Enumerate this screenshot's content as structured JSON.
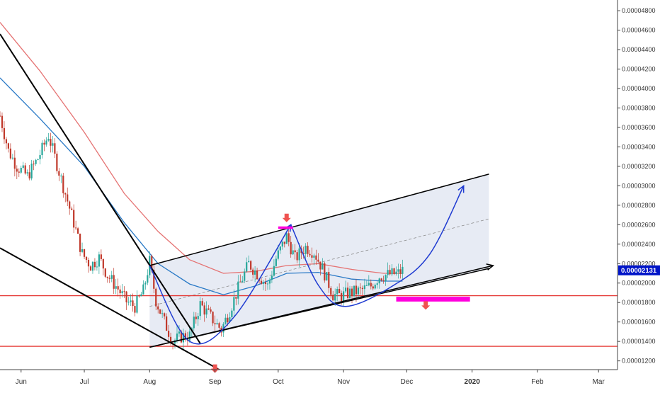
{
  "chart_data": {
    "type": "candlestick",
    "y_axis": {
      "position": "right",
      "ylim": [
        1.11e-05,
        4.91e-05
      ],
      "ticks": [
        "0.00001200",
        "0.00001400",
        "0.00001600",
        "0.00001800",
        "0.00002000",
        "0.00002200",
        "0.00002400",
        "0.00002600",
        "0.00002800",
        "0.00003000",
        "0.00003200",
        "0.00003400",
        "0.00003600",
        "0.00003800",
        "0.00004000",
        "0.00004200",
        "0.00004400",
        "0.00004600",
        "0.00004800"
      ],
      "current_price_label": "0.00002131",
      "current_price": 2.131e-05,
      "current_price_color": "#0015c8"
    },
    "x_axis": {
      "position": "bottom",
      "date_range": [
        "2019-05-22",
        "2020-03-10"
      ],
      "ticks": [
        {
          "label": "Jun",
          "date": "2019-06-01"
        },
        {
          "label": "Jul",
          "date": "2019-07-01"
        },
        {
          "label": "Aug",
          "date": "2019-08-01"
        },
        {
          "label": "Sep",
          "date": "2019-09-01"
        },
        {
          "label": "Oct",
          "date": "2019-10-01"
        },
        {
          "label": "Nov",
          "date": "2019-11-01"
        },
        {
          "label": "Dec",
          "date": "2019-12-01"
        },
        {
          "label": "2020",
          "date": "2020-01-01"
        },
        {
          "label": "Feb",
          "date": "2020-02-01"
        },
        {
          "label": "Mar",
          "date": "2020-03-01"
        }
      ]
    },
    "grid": false,
    "colors": {
      "up": "#26a69a",
      "down": "#c0392b",
      "ma_fast": "#2979c6",
      "ma_slow": "#e57373",
      "channel_fill": "#dfe4f0",
      "support": "#e53935",
      "arrow_marker": "#ef5350",
      "highlight": "#ff00dd",
      "projection": "#1f3bd1"
    },
    "price_path": [
      [
        "2019-05-22",
        3.72e-05
      ],
      [
        "2019-05-26",
        3.36e-05
      ],
      [
        "2019-05-30",
        3.2e-05
      ],
      [
        "2019-06-04",
        3.1e-05
      ],
      [
        "2019-06-09",
        3.28e-05
      ],
      [
        "2019-06-14",
        3.52e-05
      ],
      [
        "2019-06-18",
        3.22e-05
      ],
      [
        "2019-06-22",
        2.92e-05
      ],
      [
        "2019-06-26",
        2.62e-05
      ],
      [
        "2019-06-30",
        2.3e-05
      ],
      [
        "2019-07-04",
        2.18e-05
      ],
      [
        "2019-07-08",
        2.26e-05
      ],
      [
        "2019-07-12",
        2.08e-05
      ],
      [
        "2019-07-17",
        1.94e-05
      ],
      [
        "2019-07-21",
        1.81e-05
      ],
      [
        "2019-07-25",
        1.76e-05
      ],
      [
        "2019-07-29",
        1.92e-05
      ],
      [
        "2019-08-01",
        2.22e-05
      ],
      [
        "2019-08-04",
        1.82e-05
      ],
      [
        "2019-08-08",
        1.6e-05
      ],
      [
        "2019-08-12",
        1.4e-05
      ],
      [
        "2019-08-16",
        1.45e-05
      ],
      [
        "2019-08-20",
        1.46e-05
      ],
      [
        "2019-08-25",
        1.78e-05
      ],
      [
        "2019-08-30",
        1.65e-05
      ],
      [
        "2019-09-04",
        1.52e-05
      ],
      [
        "2019-09-08",
        1.72e-05
      ],
      [
        "2019-09-13",
        2e-05
      ],
      [
        "2019-09-17",
        2.2e-05
      ],
      [
        "2019-09-21",
        2.1e-05
      ],
      [
        "2019-09-26",
        1.97e-05
      ],
      [
        "2019-09-30",
        2.25e-05
      ],
      [
        "2019-10-05",
        2.48e-05
      ],
      [
        "2019-10-09",
        2.25e-05
      ],
      [
        "2019-10-14",
        2.37e-05
      ],
      [
        "2019-10-18",
        2.32e-05
      ],
      [
        "2019-10-22",
        2.15e-05
      ],
      [
        "2019-10-27",
        1.88e-05
      ],
      [
        "2019-10-31",
        1.87e-05
      ],
      [
        "2019-11-04",
        1.9e-05
      ],
      [
        "2019-11-09",
        1.92e-05
      ],
      [
        "2019-11-14",
        1.97e-05
      ],
      [
        "2019-11-18",
        2.07e-05
      ],
      [
        "2019-11-23",
        2.09e-05
      ],
      [
        "2019-11-27",
        2.1e-05
      ],
      [
        "2019-11-29",
        2.13e-05
      ]
    ],
    "moving_averages": [
      {
        "color": "#e57373",
        "points": [
          [
            "2019-05-22",
            4.68e-05
          ],
          [
            "2019-06-10",
            4.18e-05
          ],
          [
            "2019-07-01",
            3.55e-05
          ],
          [
            "2019-07-20",
            2.92e-05
          ],
          [
            "2019-08-05",
            2.53e-05
          ],
          [
            "2019-08-20",
            2.24e-05
          ],
          [
            "2019-09-05",
            2.1e-05
          ],
          [
            "2019-09-20",
            2.12e-05
          ],
          [
            "2019-10-05",
            2.18e-05
          ],
          [
            "2019-10-20",
            2.2e-05
          ],
          [
            "2019-11-05",
            2.14e-05
          ],
          [
            "2019-11-20",
            2.1e-05
          ],
          [
            "2019-11-29",
            2.1e-05
          ]
        ]
      },
      {
        "color": "#2979c6",
        "points": [
          [
            "2019-05-22",
            4.11e-05
          ],
          [
            "2019-06-10",
            3.69e-05
          ],
          [
            "2019-07-01",
            3.2e-05
          ],
          [
            "2019-07-20",
            2.62e-05
          ],
          [
            "2019-08-05",
            2.2e-05
          ],
          [
            "2019-08-20",
            1.99e-05
          ],
          [
            "2019-09-05",
            1.88e-05
          ],
          [
            "2019-09-20",
            1.97e-05
          ],
          [
            "2019-10-05",
            2.1e-05
          ],
          [
            "2019-10-20",
            2.11e-05
          ],
          [
            "2019-11-05",
            2.04e-05
          ],
          [
            "2019-11-20",
            2.02e-05
          ],
          [
            "2019-11-29",
            2.02e-05
          ]
        ]
      }
    ],
    "drawings": {
      "support_lines": [
        1.87e-05,
        1.35e-05
      ],
      "upper_wedge_line": [
        [
          "2019-05-22",
          4.56e-05
        ],
        [
          "2019-08-25",
          1.38e-05
        ]
      ],
      "lower_wedge_line": [
        [
          "2019-05-22",
          2.36e-05
        ],
        [
          "2019-09-03",
          1.11e-05
        ]
      ],
      "channel": {
        "upper": [
          [
            "2019-08-01",
            2.18e-05
          ],
          [
            "2020-01-09",
            3.12e-05
          ]
        ],
        "lower": [
          [
            "2019-08-01",
            1.34e-05
          ],
          [
            "2020-01-09",
            2.15e-05
          ]
        ],
        "midline": [
          [
            "2019-08-01",
            1.76e-05
          ],
          [
            "2020-01-09",
            2.66e-05
          ]
        ]
      },
      "rising_arrow": [
        [
          "2019-08-01",
          1.34e-05
        ],
        [
          "2020-01-11",
          2.18e-05
        ]
      ],
      "cup_curves": [
        [
          [
            "2019-08-01",
            2.18e-05
          ],
          [
            "2019-08-20",
            1.4e-05
          ],
          [
            "2019-09-10",
            1.65e-05
          ],
          [
            "2019-10-07",
            2.6e-05
          ]
        ],
        [
          [
            "2019-10-07",
            2.6e-05
          ],
          [
            "2019-10-20",
            1.98e-05
          ],
          [
            "2019-11-02",
            1.76e-05
          ],
          [
            "2019-11-25",
            1.98e-05
          ],
          [
            "2019-12-12",
            2.3e-05
          ],
          [
            "2019-12-28",
            3e-05
          ]
        ]
      ],
      "markers": [
        {
          "type": "arrow-down",
          "date": "2019-10-05",
          "value": 2.67e-05
        },
        {
          "type": "arrow-down",
          "date": "2019-12-10",
          "value": 1.77e-05
        },
        {
          "type": "arrow-down",
          "date": "2019-09-01",
          "value": 1.12e-05
        }
      ],
      "highlights": [
        {
          "type": "bar",
          "from": "2019-10-01",
          "to": "2019-10-08",
          "value": 2.57e-05
        },
        {
          "type": "box",
          "from": "2019-11-26",
          "to": "2019-12-31",
          "top": 1.86e-05,
          "bottom": 1.81e-05
        }
      ]
    }
  }
}
